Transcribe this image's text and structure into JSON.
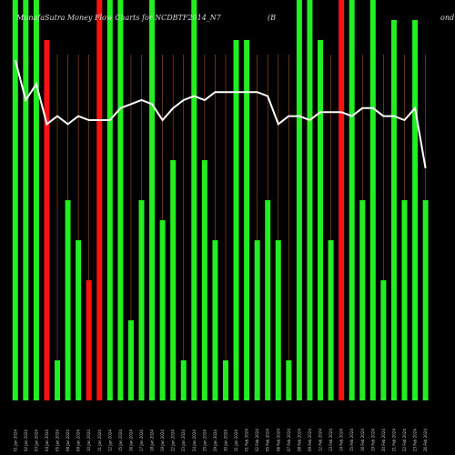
{
  "chart_data": {
    "type": "bar",
    "title_left": "MunafaSutra  Money Flow  Charts for NCDBTF2014_N7",
    "title_mid": "(B",
    "title_right": "ond",
    "ylim": [
      0,
      100
    ],
    "colors": {
      "green": "#22ee22",
      "red": "#ff1111",
      "line": "#ffffff",
      "grid": "#a0522d",
      "background": "#000000"
    },
    "categories": [
      "01 Jan 2024",
      "02 Jan 2024",
      "03 Jan 2024",
      "04 Jan 2024",
      "05 Jan 2024",
      "08 Jan 2024",
      "09 Jan 2024",
      "10 Jan 2024",
      "11 Jan 2024",
      "12 Jan 2024",
      "15 Jan 2024",
      "16 Jan 2024",
      "17 Jan 2024",
      "18 Jan 2024",
      "19 Jan 2024",
      "22 Jan 2024",
      "23 Jan 2024",
      "24 Jan 2024",
      "25 Jan 2024",
      "29 Jan 2024",
      "30 Jan 2024",
      "31 Jan 2024",
      "01 Feb 2024",
      "02 Feb 2024",
      "05 Feb 2024",
      "06 Feb 2024",
      "07 Feb 2024",
      "08 Feb 2024",
      "09 Feb 2024",
      "12 Feb 2024",
      "13 Feb 2024",
      "14 Feb 2024",
      "15 Feb 2024",
      "16 Feb 2024",
      "19 Feb 2024",
      "20 Feb 2024",
      "21 Feb 2024",
      "22 Feb 2024",
      "23 Feb 2024",
      "26 Feb 2024"
    ],
    "series": [
      {
        "values": [
          100,
          100,
          100,
          90,
          10,
          50,
          40,
          30,
          100,
          100,
          100,
          20,
          50,
          100,
          45,
          60,
          10,
          100,
          60,
          40,
          10,
          90,
          90,
          40,
          50,
          40,
          10,
          100,
          100,
          90,
          40,
          100,
          100,
          50,
          100,
          30,
          95,
          50,
          95,
          50
        ]
      },
      {
        "values": [
          85,
          75,
          79,
          69,
          71,
          69,
          71,
          70,
          70,
          70,
          73,
          74,
          75,
          74,
          70,
          73,
          75,
          76,
          75,
          77,
          77,
          77,
          77,
          77,
          76,
          69,
          71,
          71,
          70,
          72,
          72,
          72,
          71,
          73,
          73,
          71,
          71,
          70,
          73,
          58
        ]
      }
    ],
    "bar_colors": [
      "green",
      "green",
      "green",
      "red",
      "green",
      "green",
      "green",
      "red",
      "red",
      "green",
      "green",
      "green",
      "green",
      "green",
      "green",
      "green",
      "green",
      "green",
      "green",
      "green",
      "green",
      "green",
      "green",
      "green",
      "green",
      "green",
      "green",
      "green",
      "green",
      "green",
      "green",
      "red",
      "green",
      "green",
      "green",
      "green",
      "green",
      "green",
      "green",
      "green"
    ]
  }
}
